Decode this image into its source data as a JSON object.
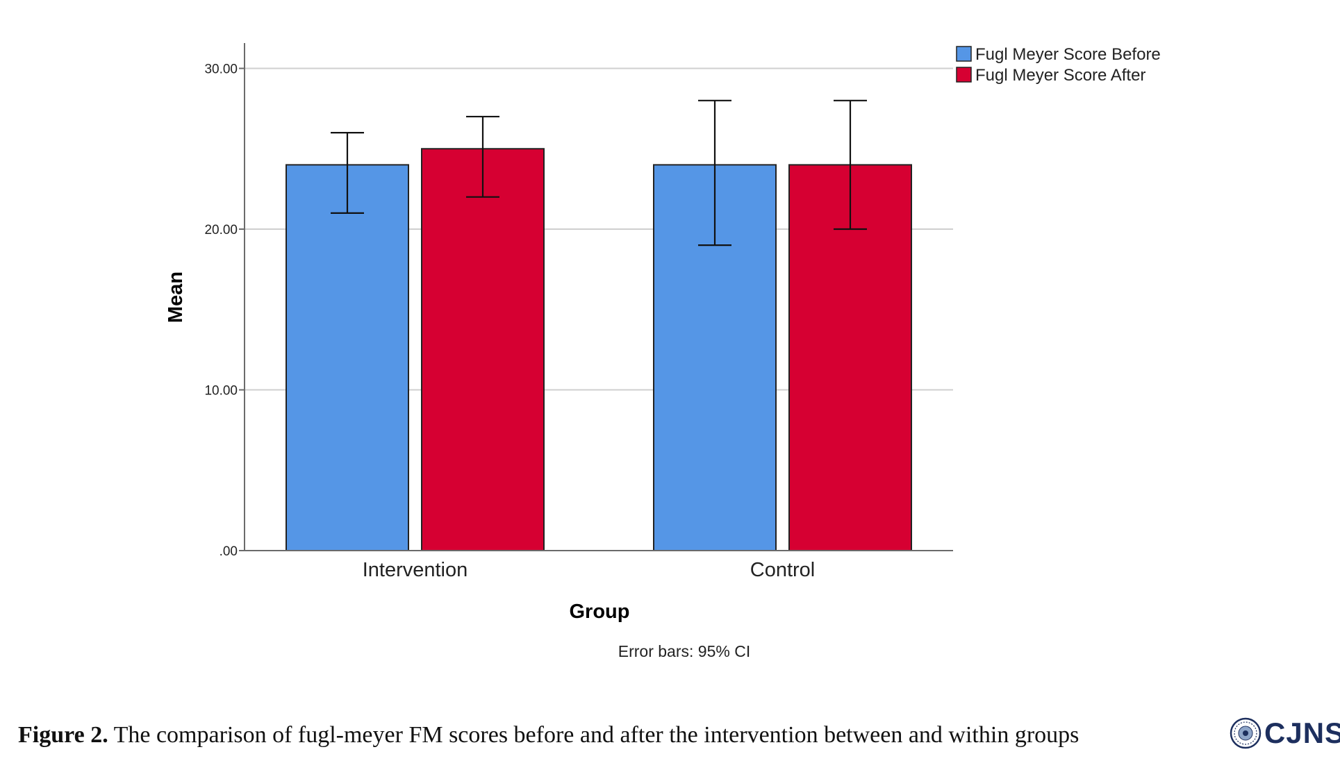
{
  "chart_data": {
    "type": "bar",
    "categories": [
      "Intervention",
      "Control"
    ],
    "series": [
      {
        "name": "Fugl Meyer Score Before",
        "color": "#5596e6",
        "values": [
          24,
          24
        ],
        "ci_lower": [
          21,
          19
        ],
        "ci_upper": [
          26,
          28
        ]
      },
      {
        "name": "Fugl Meyer Score After",
        "color": "#d60032",
        "values": [
          25,
          24
        ],
        "ci_lower": [
          22,
          20
        ],
        "ci_upper": [
          27,
          28
        ]
      }
    ],
    "xlabel": "Group",
    "ylabel": "Mean",
    "ylim": [
      0,
      31.5
    ],
    "yticks": [
      0,
      10,
      20,
      30
    ],
    "ytick_labels": [
      ".00",
      "10.00",
      "20.00",
      "30.00"
    ],
    "grid": true,
    "legend_position": "top-right",
    "note": "Error bars: 95% CI"
  },
  "caption": {
    "label": "Figure 2.",
    "text": " The comparison of fugl-meyer FM scores before and after the intervention between and within groups"
  },
  "logo": {
    "text": "CJNS",
    "icon": "journal-seal-icon"
  }
}
